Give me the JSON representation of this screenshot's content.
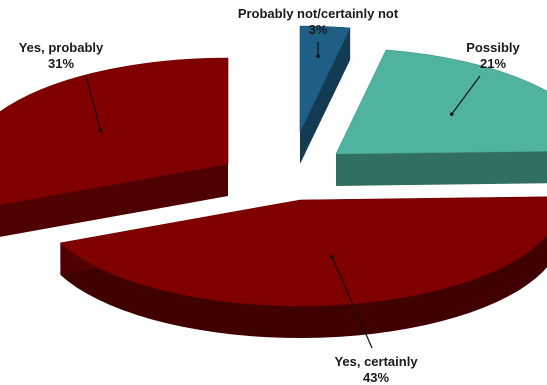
{
  "chart_data": {
    "type": "pie",
    "title": "",
    "slices": [
      {
        "label": "Probably not/certainly not",
        "value_label": "3%",
        "value": 3,
        "color": "#1f5f86"
      },
      {
        "label": "Possibly",
        "value_label": "21%",
        "value": 21,
        "color": "#4fb3a0"
      },
      {
        "label": "Yes, certainly",
        "value_label": "43%",
        "value": 43,
        "color": "#800000"
      },
      {
        "label": "Yes, probably",
        "value_label": "31%",
        "value": 31,
        "color": "#800000"
      }
    ],
    "style": "3d-exploded"
  }
}
